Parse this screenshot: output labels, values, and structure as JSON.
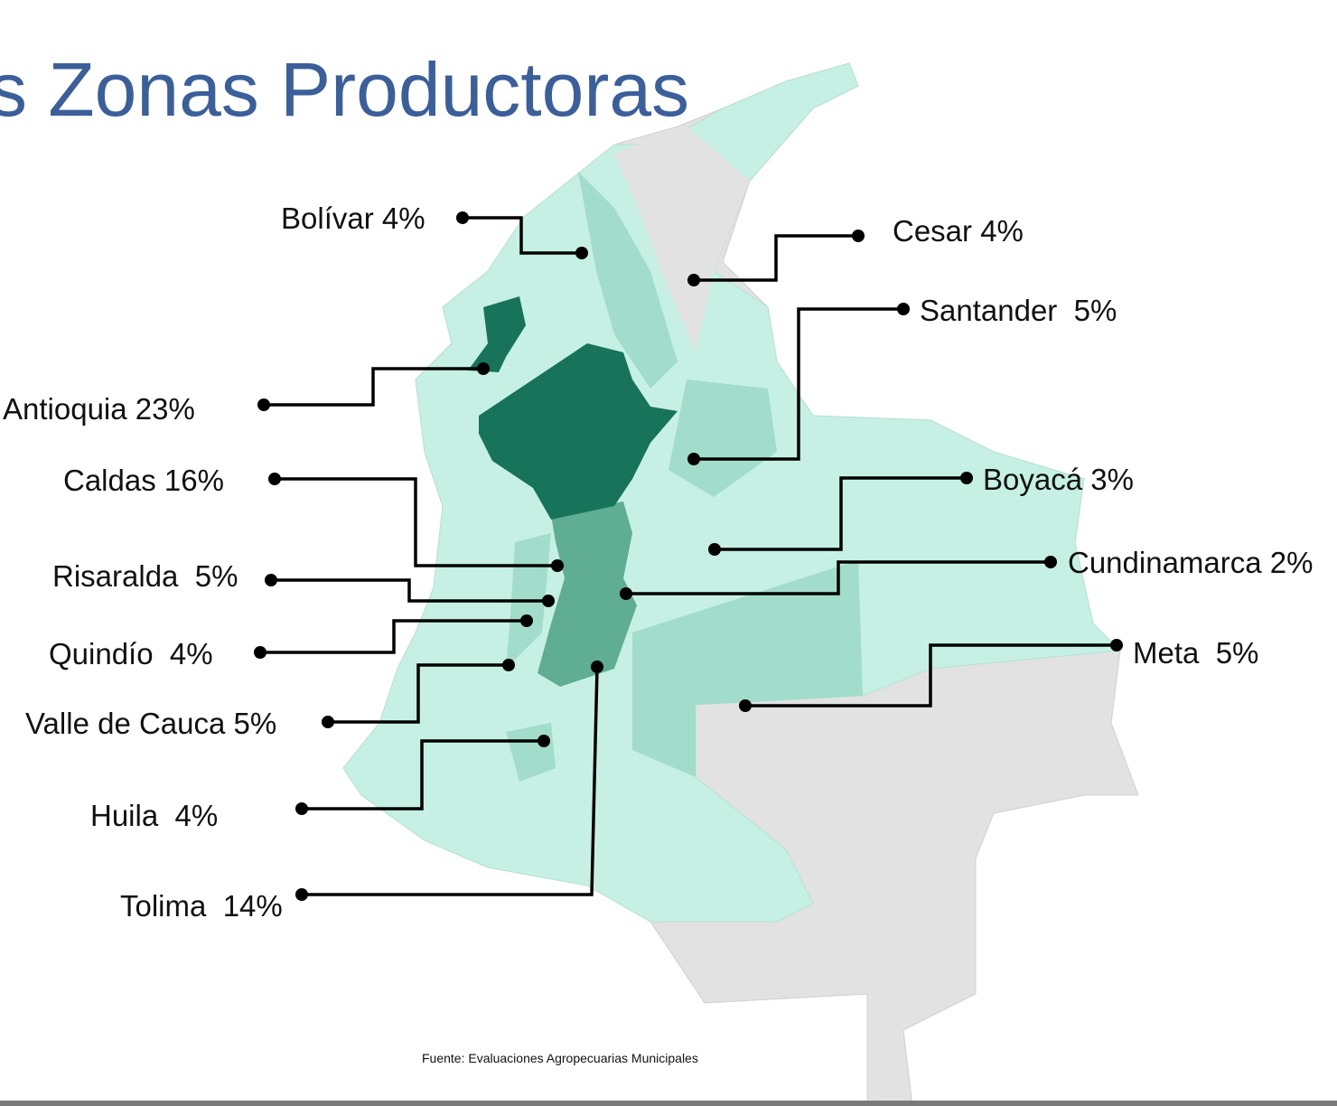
{
  "title": "s Zonas Productoras",
  "labels": [
    "Bolívar 4%",
    "Cesar 4%",
    "Santander  5%",
    "Antioquia 23%",
    "Caldas 16%",
    "Boyacá 3%",
    "Cundinamarca 2%",
    "Risaralda  5%",
    "Meta  5%",
    "Quindío  4%",
    "Valle de Cauca 5%",
    "Huila  4%",
    "Tolima  14%"
  ],
  "source": "Fuente: Evaluaciones Agropecuarias Municipales"
}
